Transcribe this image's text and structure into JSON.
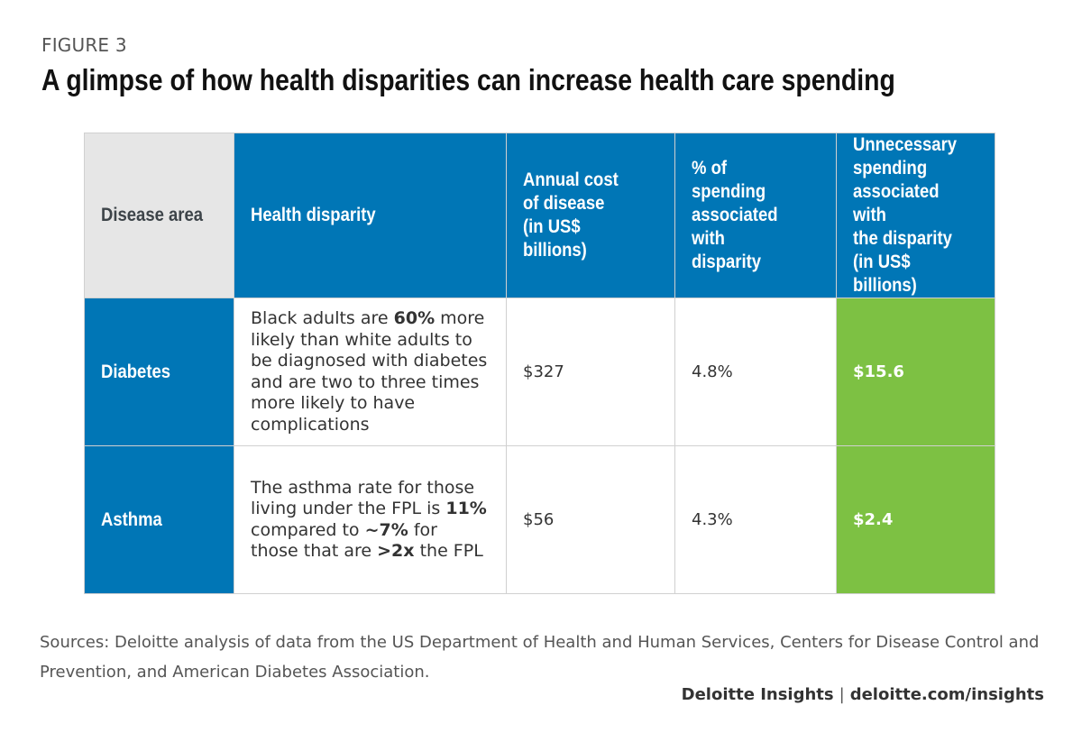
{
  "figure_label": "FIGURE 3",
  "title": "A glimpse of how health disparities can increase health care spending",
  "chart_data": {
    "type": "table",
    "columns": [
      "Disease area",
      "Health disparity",
      "Annual cost of disease (in US$ billions)",
      "% of spending associated with disparity",
      "Unnecessary spending associated with the disparity (in US$ billions)"
    ],
    "header_lines": [
      [
        "Disease area"
      ],
      [
        "Health disparity"
      ],
      [
        "Annual cost",
        "of disease",
        "(in US$ billions)"
      ],
      [
        "% of spending",
        "associated with",
        "disparity"
      ],
      [
        "Unnecessary",
        "spending",
        "associated with",
        "the disparity",
        "(in US$ billions)"
      ]
    ],
    "rows": [
      {
        "disease_area": "Diabetes",
        "disparity_parts": [
          {
            "text": "Black adults are ",
            "bold": false
          },
          {
            "text": "60%",
            "bold": true
          },
          {
            "text": " more likely than white adults to be diagnosed with diabetes and are two to three times more likely to have complications",
            "bold": false
          }
        ],
        "annual_cost": "$327",
        "pct_spending": "4.8%",
        "unnecessary_spending": "$15.6"
      },
      {
        "disease_area": "Asthma",
        "disparity_parts": [
          {
            "text": "The asthma rate for those living under the FPL is ",
            "bold": false
          },
          {
            "text": "11%",
            "bold": true
          },
          {
            "text": " compared to ",
            "bold": false
          },
          {
            "text": "~7%",
            "bold": true
          },
          {
            "text": " for those that are ",
            "bold": false
          },
          {
            "text": ">2x",
            "bold": true
          },
          {
            "text": " the FPL",
            "bold": false
          }
        ],
        "annual_cost": "$56",
        "pct_spending": "4.3%",
        "unnecessary_spending": "$2.4"
      }
    ]
  },
  "sources": "Sources: Deloitte analysis of data from the US Department of Health and Human Services, Centers for Disease Control and Prevention, and American Diabetes Association.",
  "brand": {
    "name": "Deloitte Insights",
    "separator": "|",
    "url": "deloitte.com/insights"
  },
  "colors": {
    "header_blue": "#0076b6",
    "highlight_green": "#7dc143",
    "corner_gray": "#e6e6e6"
  }
}
